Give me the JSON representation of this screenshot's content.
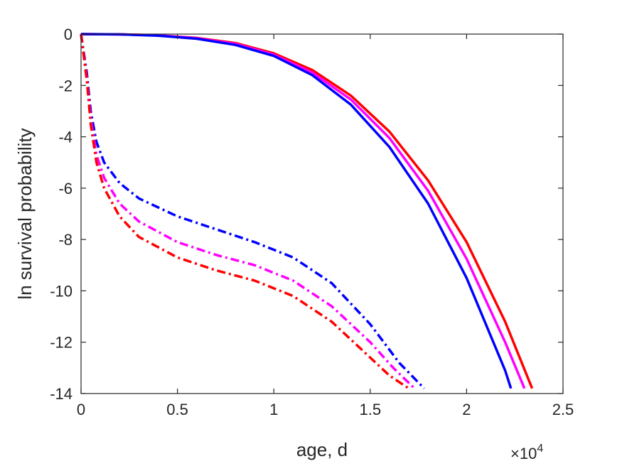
{
  "chart_data": {
    "type": "line",
    "xlabel": "age, d",
    "ylabel": "ln survival probability",
    "x_multiplier_label": "×10",
    "x_multiplier_exponent": "4",
    "xlim": [
      0,
      2.5
    ],
    "ylim": [
      -14,
      0
    ],
    "xticks": [
      "0",
      "0.5",
      "1",
      "1.5",
      "2",
      "2.5"
    ],
    "yticks": [
      "0",
      "-2",
      "-4",
      "-6",
      "-8",
      "-10",
      "-12",
      "-14"
    ],
    "grid": false,
    "legend": "none",
    "series": [
      {
        "color": "#ff0000",
        "style": "solid",
        "x": [
          0.0,
          0.2,
          0.4,
          0.6,
          0.8,
          1.0,
          1.2,
          1.4,
          1.6,
          1.8,
          2.0,
          2.2,
          2.34
        ],
        "y": [
          0.0,
          -0.01,
          -0.05,
          -0.15,
          -0.35,
          -0.75,
          -1.4,
          -2.4,
          -3.8,
          -5.7,
          -8.1,
          -11.2,
          -13.8
        ]
      },
      {
        "color": "#ff00ff",
        "style": "solid",
        "x": [
          0.0,
          0.2,
          0.4,
          0.6,
          0.8,
          1.0,
          1.2,
          1.4,
          1.6,
          1.8,
          2.0,
          2.2,
          2.3
        ],
        "y": [
          0.0,
          -0.01,
          -0.05,
          -0.16,
          -0.38,
          -0.8,
          -1.5,
          -2.55,
          -4.05,
          -6.1,
          -8.75,
          -12.0,
          -13.8
        ]
      },
      {
        "color": "#0000ff",
        "style": "solid",
        "x": [
          0.0,
          0.2,
          0.4,
          0.6,
          0.8,
          1.0,
          1.2,
          1.4,
          1.6,
          1.8,
          2.0,
          2.2,
          2.23
        ],
        "y": [
          0.0,
          -0.01,
          -0.06,
          -0.18,
          -0.42,
          -0.85,
          -1.6,
          -2.75,
          -4.4,
          -6.6,
          -9.5,
          -13.1,
          -13.8
        ]
      },
      {
        "color": "#0000ff",
        "style": "dashdot",
        "x": [
          0.0,
          0.03,
          0.05,
          0.08,
          0.12,
          0.2,
          0.3,
          0.5,
          0.7,
          0.9,
          1.1,
          1.3,
          1.5,
          1.65,
          1.78
        ],
        "y": [
          0.0,
          -1.5,
          -3.0,
          -4.2,
          -5.0,
          -5.8,
          -6.4,
          -7.1,
          -7.6,
          -8.1,
          -8.7,
          -9.7,
          -11.3,
          -12.8,
          -13.8
        ]
      },
      {
        "color": "#ff00ff",
        "style": "dashdot",
        "x": [
          0.0,
          0.03,
          0.05,
          0.08,
          0.12,
          0.2,
          0.3,
          0.5,
          0.7,
          0.9,
          1.1,
          1.3,
          1.5,
          1.62,
          1.73
        ],
        "y": [
          0.0,
          -1.7,
          -3.3,
          -4.7,
          -5.6,
          -6.6,
          -7.3,
          -8.1,
          -8.6,
          -9.0,
          -9.6,
          -10.6,
          -12.0,
          -13.0,
          -13.8
        ]
      },
      {
        "color": "#ff0000",
        "style": "dashdot",
        "x": [
          0.0,
          0.03,
          0.05,
          0.08,
          0.12,
          0.2,
          0.3,
          0.5,
          0.7,
          0.9,
          1.1,
          1.3,
          1.5,
          1.6,
          1.7
        ],
        "y": [
          0.0,
          -1.8,
          -3.5,
          -5.0,
          -6.0,
          -7.1,
          -7.9,
          -8.7,
          -9.2,
          -9.6,
          -10.2,
          -11.2,
          -12.6,
          -13.3,
          -13.8
        ]
      }
    ]
  }
}
